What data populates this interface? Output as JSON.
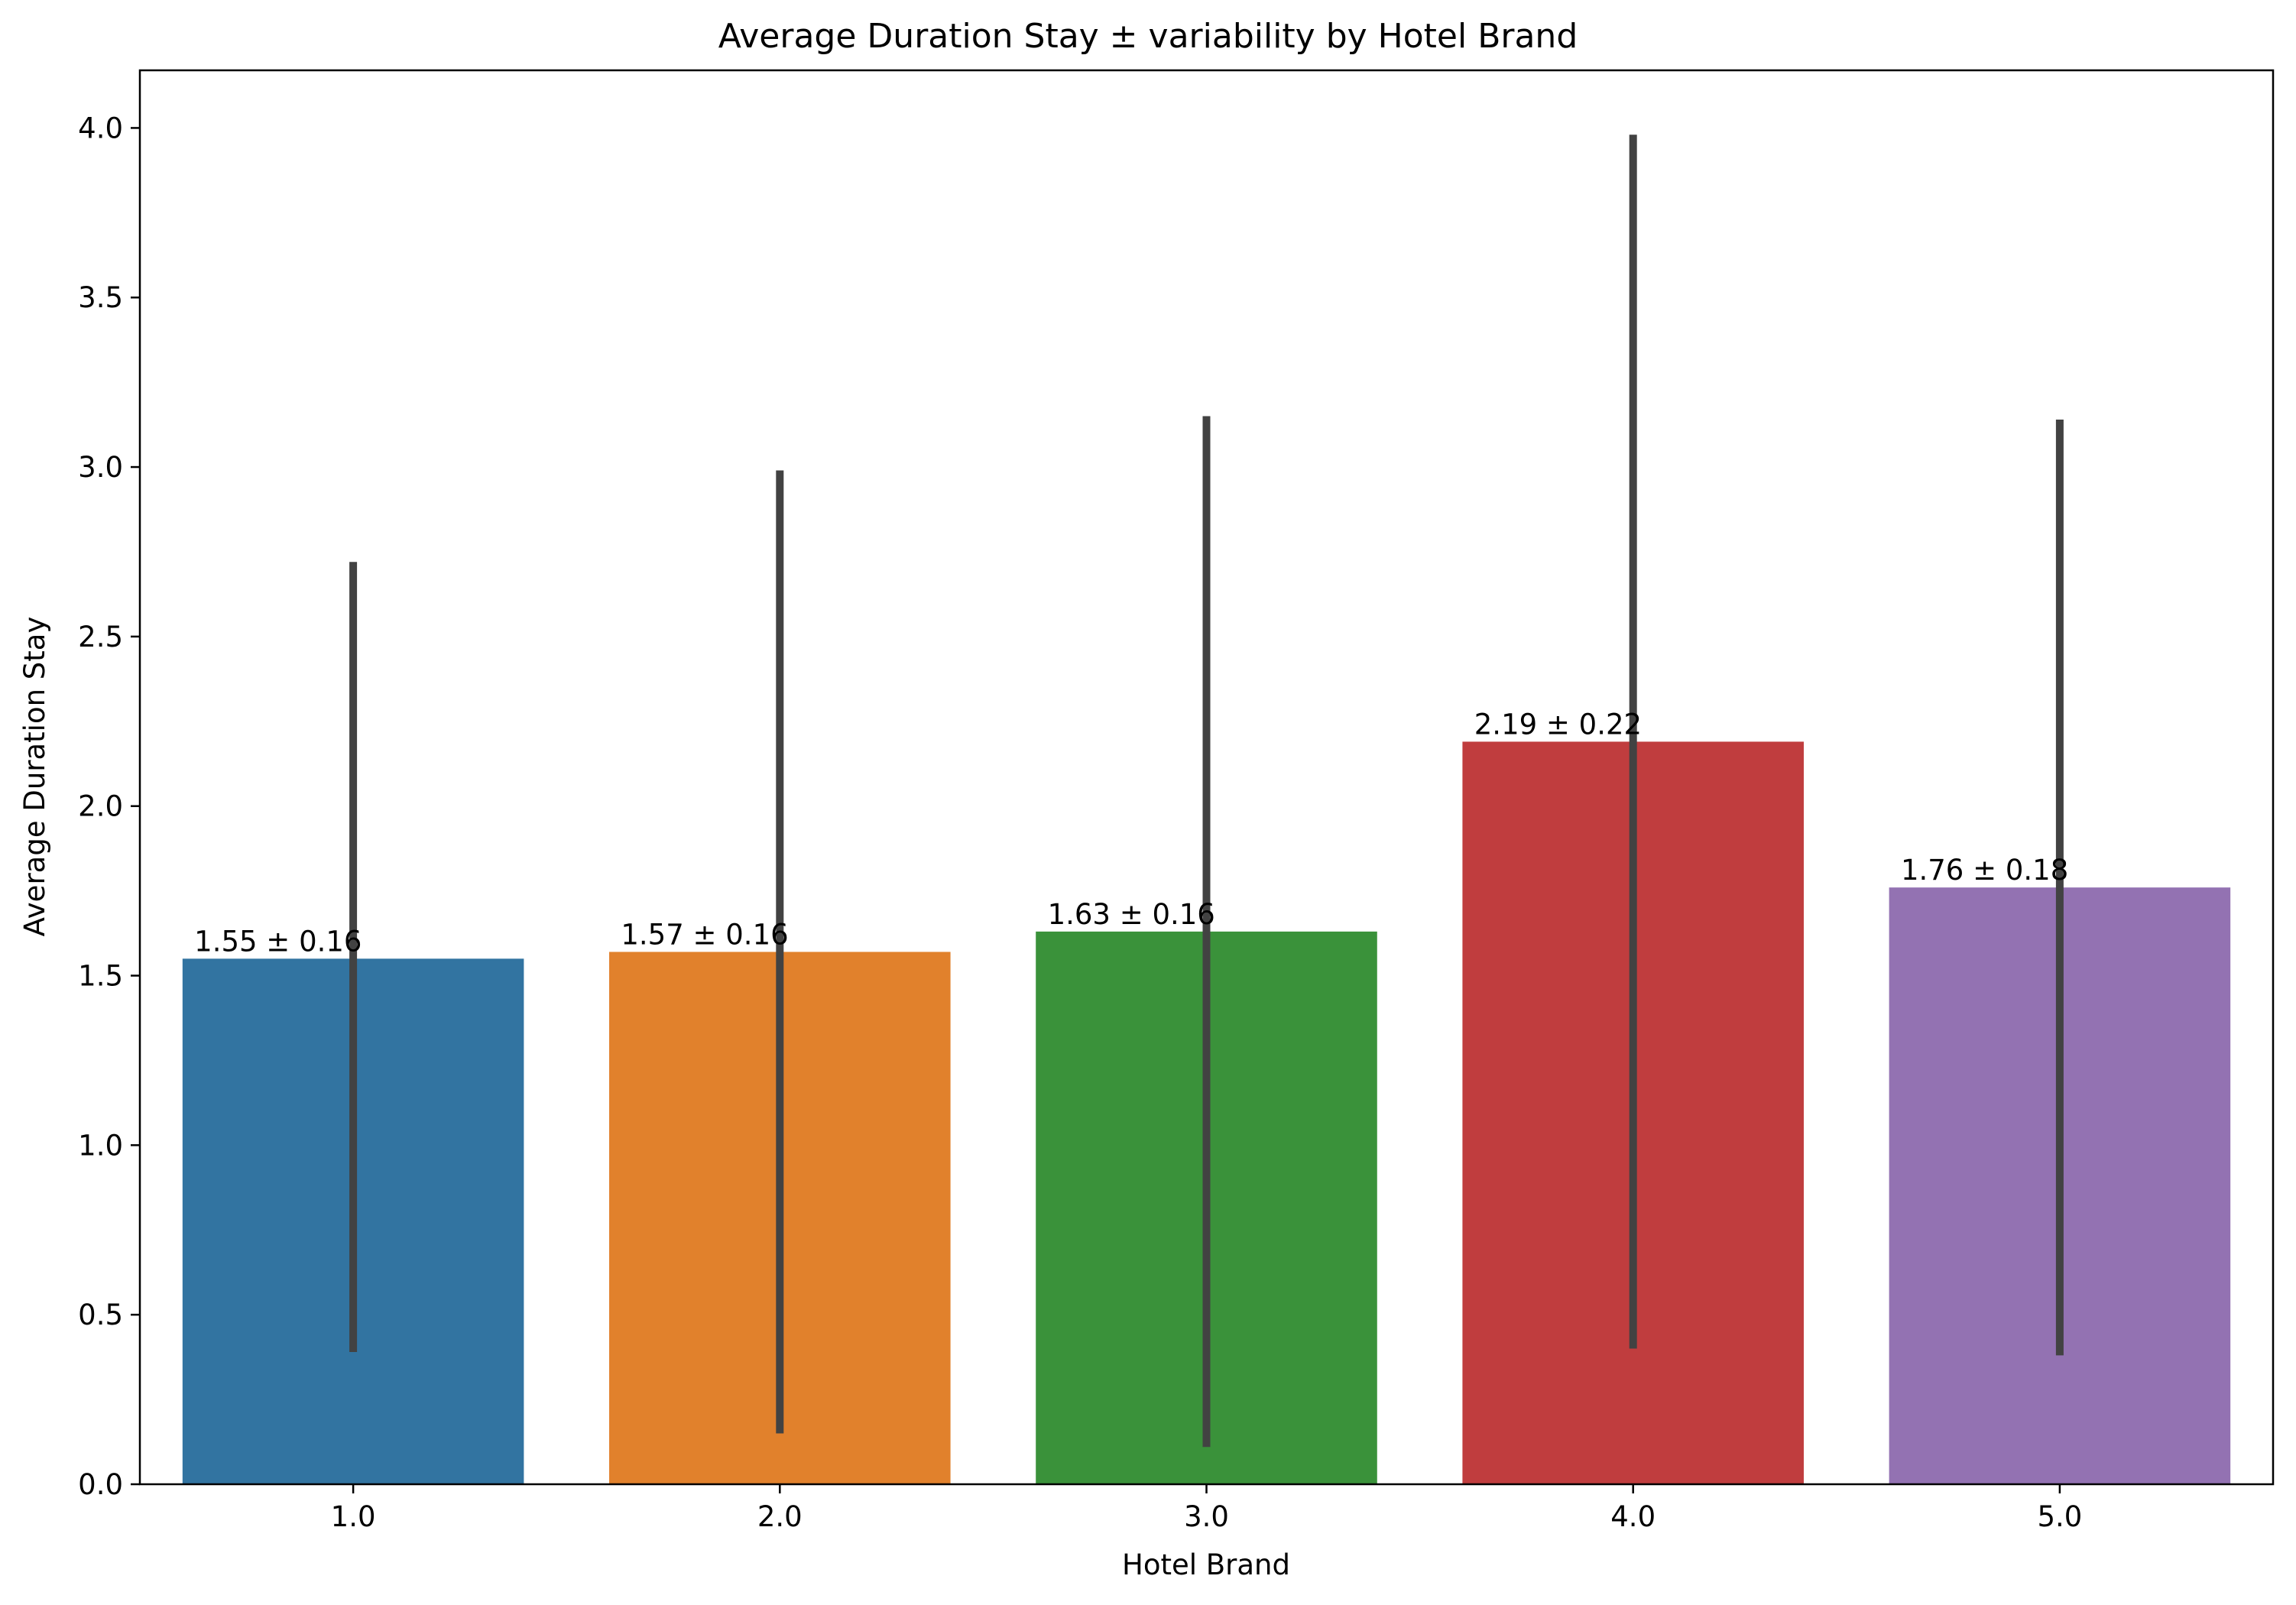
{
  "chart_data": {
    "type": "bar",
    "title": "Average Duration Stay ± variability by Hotel Brand",
    "xlabel": "Hotel Brand",
    "ylabel": "Average Duration Stay",
    "categories": [
      "1.0",
      "2.0",
      "3.0",
      "4.0",
      "5.0"
    ],
    "values": [
      1.55,
      1.57,
      1.63,
      2.19,
      1.76
    ],
    "error_bars": [
      {
        "low": 0.39,
        "high": 2.72
      },
      {
        "low": 0.15,
        "high": 2.99
      },
      {
        "low": 0.11,
        "high": 3.15
      },
      {
        "low": 0.4,
        "high": 3.98
      },
      {
        "low": 0.38,
        "high": 3.14
      }
    ],
    "data_labels": [
      "1.55 ± 0.16",
      "1.57 ± 0.16",
      "1.63 ± 0.16",
      "2.19 ± 0.22",
      "1.76 ± 0.18"
    ],
    "colors": [
      "#3274a1",
      "#e1812c",
      "#3a923a",
      "#c03d3e",
      "#9372b2"
    ],
    "error_bar_color": "#424242",
    "ylim": [
      0,
      4.17
    ],
    "yticks": [
      0.0,
      0.5,
      1.0,
      1.5,
      2.0,
      2.5,
      3.0,
      3.5,
      4.0
    ],
    "ytick_labels": [
      "0.0",
      "0.5",
      "1.0",
      "1.5",
      "2.0",
      "2.5",
      "3.0",
      "3.5",
      "4.0"
    ],
    "grid": false,
    "legend": "none"
  }
}
